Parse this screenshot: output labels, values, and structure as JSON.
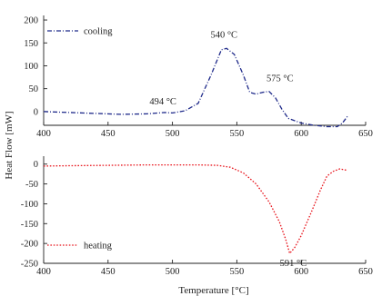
{
  "chart_data": {
    "type": "line",
    "ylabel": "Heat Flow [mW]",
    "xlabel": "Temperature [°C]",
    "panels": [
      {
        "x_ticks": [
          400,
          450,
          500,
          550,
          600,
          650
        ],
        "y_ticks": [
          200,
          150,
          100,
          50,
          0
        ],
        "xlim": [
          400,
          650
        ],
        "ylim": [
          -30,
          210
        ],
        "series": [
          {
            "name": "cooling",
            "color": "#1f2a8a",
            "style": "dash-dot",
            "points": [
              [
                400,
                0
              ],
              [
                420,
                -2
              ],
              [
                440,
                -4
              ],
              [
                460,
                -6
              ],
              [
                480,
                -5
              ],
              [
                494,
                -2
              ],
              [
                500,
                -3
              ],
              [
                510,
                2
              ],
              [
                520,
                18
              ],
              [
                530,
                80
              ],
              [
                538,
                135
              ],
              [
                542,
                138
              ],
              [
                548,
                125
              ],
              [
                555,
                80
              ],
              [
                560,
                42
              ],
              [
                565,
                38
              ],
              [
                570,
                42
              ],
              [
                575,
                44
              ],
              [
                580,
                30
              ],
              [
                585,
                5
              ],
              [
                590,
                -15
              ],
              [
                600,
                -25
              ],
              [
                610,
                -30
              ],
              [
                620,
                -33
              ],
              [
                628,
                -33
              ],
              [
                632,
                -25
              ],
              [
                636,
                -10
              ]
            ]
          }
        ],
        "annotations": [
          {
            "text": "494 °C",
            "x": 494,
            "y": -2
          },
          {
            "text": "540 °C",
            "x": 540,
            "y": 138
          },
          {
            "text": "575 °C",
            "x": 575,
            "y": 44
          }
        ],
        "legend_position": "top-left"
      },
      {
        "x_ticks": [
          400,
          450,
          500,
          550,
          600,
          650
        ],
        "y_ticks": [
          0,
          -50,
          -100,
          -150,
          -200,
          -250
        ],
        "xlim": [
          400,
          650
        ],
        "ylim": [
          -250,
          20
        ],
        "series": [
          {
            "name": "heating",
            "color": "#e8141c",
            "style": "dotted",
            "points": [
              [
                400,
                -5
              ],
              [
                420,
                -4
              ],
              [
                450,
                -3
              ],
              [
                480,
                -2
              ],
              [
                500,
                -2
              ],
              [
                520,
                -2
              ],
              [
                535,
                -3
              ],
              [
                545,
                -8
              ],
              [
                555,
                -22
              ],
              [
                565,
                -50
              ],
              [
                575,
                -95
              ],
              [
                583,
                -145
              ],
              [
                588,
                -190
              ],
              [
                591,
                -225
              ],
              [
                595,
                -210
              ],
              [
                600,
                -180
              ],
              [
                608,
                -120
              ],
              [
                615,
                -65
              ],
              [
                620,
                -30
              ],
              [
                625,
                -18
              ],
              [
                630,
                -12
              ],
              [
                636,
                -16
              ]
            ]
          }
        ],
        "annotations": [
          {
            "text": "591 °C",
            "x": 591,
            "y": -225
          }
        ],
        "legend_position": "bottom-left"
      }
    ]
  }
}
